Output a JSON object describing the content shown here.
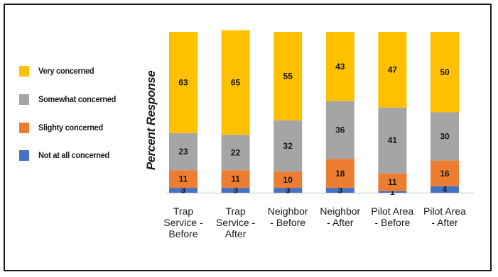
{
  "chart_data": {
    "type": "bar",
    "stacked": true,
    "ylabel": "Percent Response",
    "xlabel": "",
    "ylim": [
      0,
      100
    ],
    "grid": false,
    "legend_position": "left",
    "categories": [
      [
        "Trap",
        "Service -",
        "Before"
      ],
      [
        "Trap",
        "Service -",
        "After"
      ],
      [
        "Neighbor",
        "- Before"
      ],
      [
        "Neighbor",
        "- After"
      ],
      [
        "Pilot Area",
        "- Before"
      ],
      [
        "Pilot Area",
        "- After"
      ]
    ],
    "series": [
      {
        "name": "Not at all concerned",
        "color": "#4472c4",
        "values": [
          3,
          3,
          3,
          3,
          1,
          4
        ]
      },
      {
        "name": "Slighty concerned",
        "color": "#ed7d31",
        "values": [
          11,
          11,
          10,
          18,
          11,
          16
        ]
      },
      {
        "name": "Somewhat concerned",
        "color": "#a5a5a5",
        "values": [
          23,
          22,
          32,
          36,
          41,
          30
        ]
      },
      {
        "name": "Very concerned",
        "color": "#ffc000",
        "values": [
          63,
          65,
          55,
          43,
          47,
          50
        ]
      }
    ]
  }
}
